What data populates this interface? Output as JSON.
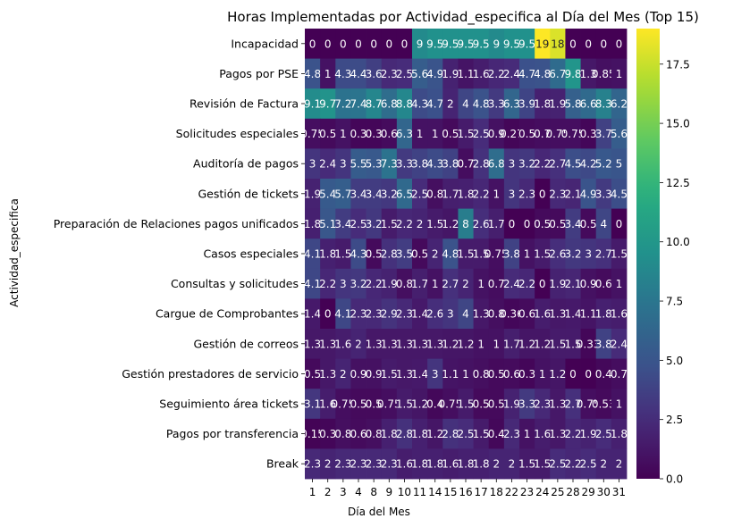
{
  "chart_data": {
    "type": "heatmap",
    "title": "Horas Implementadas por Actividad_especifica al Día del Mes (Top 15)",
    "xlabel": "Día del Mes",
    "ylabel": "Actividad_especifica",
    "x": [
      "1",
      "2",
      "3",
      "4",
      "8",
      "9",
      "10",
      "11",
      "14",
      "15",
      "16",
      "17",
      "18",
      "22",
      "23",
      "24",
      "25",
      "28",
      "29",
      "30",
      "31"
    ],
    "y": [
      "Incapacidad",
      "Pagos por PSE",
      "Revisión de Factura",
      "Solicitudes especiales",
      "Auditoría de pagos",
      "Gestión de tickets",
      "Preparación de Relaciones pagos unificados",
      "Casos especiales",
      "Consultas y solicitudes",
      "Cargue de Comprobantes",
      "Gestión de correos",
      "Gestión prestadores de servicio",
      "Seguimiento área tickets",
      "Pagos por transferencia",
      "Break"
    ],
    "values": [
      [
        0,
        0,
        0,
        0,
        0,
        0,
        0,
        9,
        9.5,
        9.5,
        9.5,
        9.5,
        9,
        9.5,
        9.5,
        19,
        18,
        0,
        0,
        0,
        0
      ],
      [
        4.8,
        1,
        4.3,
        4.4,
        3.6,
        2.3,
        2.5,
        5.6,
        4.9,
        1.9,
        1.1,
        1.6,
        2.2,
        2.4,
        4.7,
        4.8,
        6.7,
        9.8,
        1.3,
        0.85,
        1
      ],
      [
        9.1,
        9.7,
        7.2,
        7.4,
        8.7,
        6.8,
        8.8,
        4.3,
        4.7,
        2,
        4,
        4.8,
        3.3,
        6.3,
        3.9,
        1.8,
        1.9,
        5.8,
        6.6,
        8.3,
        6.2
      ],
      [
        0.75,
        0.5,
        1,
        0.3,
        0.3,
        0.6,
        6.3,
        1,
        1,
        0.5,
        1.5,
        2.5,
        0.9,
        0.27,
        0.5,
        0.7,
        0.75,
        0.75,
        0.3,
        3.7,
        5.6
      ],
      [
        3,
        2.4,
        3,
        5.5,
        5.3,
        7.3,
        3.3,
        3.8,
        4.3,
        3.8,
        0.7,
        2.8,
        6.8,
        3,
        3.2,
        2.2,
        2.7,
        4.5,
        4.2,
        5.2,
        5
      ],
      [
        1.9,
        5.4,
        5.7,
        3.4,
        3.4,
        3.2,
        6.5,
        2.5,
        0.8,
        1.7,
        1.8,
        2.2,
        1,
        3,
        2.3,
        0,
        2.3,
        2.1,
        4.9,
        3.3,
        4.5
      ],
      [
        1.8,
        5.1,
        3.4,
        2.5,
        3.2,
        1.5,
        2.2,
        2,
        1.5,
        1.2,
        8,
        2.6,
        1.7,
        0,
        0,
        0.5,
        0.5,
        3.4,
        0.5,
        4,
        0
      ],
      [
        4.1,
        1.8,
        1.5,
        4.3,
        0.5,
        2.8,
        3.5,
        0.5,
        2,
        4.8,
        1.5,
        1.5,
        0.75,
        3.8,
        1,
        1.5,
        2.6,
        3.2,
        3,
        2.7,
        1.5
      ],
      [
        4.1,
        2.2,
        3,
        3.2,
        2.2,
        1.9,
        0.8,
        1.7,
        1,
        2.7,
        2,
        1,
        0.7,
        2.4,
        2.2,
        0,
        1.9,
        2.1,
        0.9,
        0.6,
        1
      ],
      [
        1.4,
        0,
        4.1,
        2.3,
        2.3,
        2.9,
        2.3,
        1.4,
        2.6,
        3,
        4,
        1.3,
        0.8,
        0.36,
        0.6,
        1.6,
        1.3,
        1.4,
        1.1,
        1.8,
        1.6
      ],
      [
        1.3,
        1.3,
        1.6,
        2,
        1.3,
        1.3,
        1.3,
        1.3,
        1.3,
        1.2,
        1.2,
        1,
        1,
        1.7,
        1.2,
        1.2,
        1.5,
        1.5,
        0.33,
        3.8,
        2.4
      ],
      [
        0.5,
        1.3,
        2,
        0.9,
        0.9,
        1.5,
        1.3,
        1.4,
        3,
        1.1,
        1,
        0.8,
        0.5,
        0.6,
        0.3,
        1,
        1.2,
        0,
        0,
        0.4,
        0.7
      ],
      [
        3.1,
        1.6,
        0.75,
        0.5,
        0.5,
        0.75,
        1.5,
        1.2,
        0.4,
        0.75,
        1.5,
        0.5,
        0.5,
        1.9,
        3.3,
        2.3,
        1.3,
        2.7,
        0.75,
        0.53,
        1
      ],
      [
        0.15,
        0.3,
        0.8,
        0.6,
        0.8,
        1.8,
        2.8,
        1.8,
        1.2,
        2.8,
        2.5,
        1.5,
        0.4,
        2.3,
        1,
        1.6,
        1.3,
        2.2,
        1.9,
        2.5,
        1.8
      ],
      [
        2.3,
        2,
        2.3,
        2.3,
        2.3,
        2.3,
        1.6,
        1.8,
        1.8,
        1.6,
        1.8,
        1.8,
        2,
        2,
        1.5,
        1.5,
        2.5,
        2.2,
        2.5,
        2,
        2
      ]
    ],
    "colorscale": "viridis",
    "vmin": 0,
    "vmax": 19,
    "colorbar_ticks": [
      "0.0",
      "2.5",
      "5.0",
      "7.5",
      "10.0",
      "12.5",
      "15.0",
      "17.5"
    ],
    "annotations": "cell values",
    "grid": false,
    "legend": "colorbar-right"
  }
}
